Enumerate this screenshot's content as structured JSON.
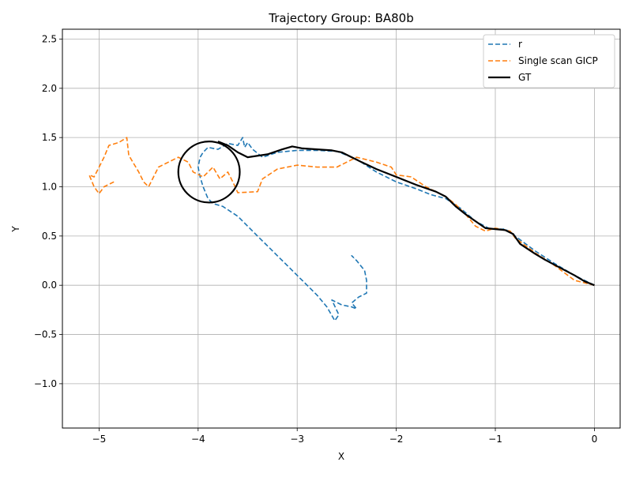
{
  "chart_data": {
    "type": "line",
    "title": "Trajectory Group: BA80b",
    "xlabel": "X",
    "ylabel": "Y",
    "xlim": [
      -5.37,
      0.26
    ],
    "ylim": [
      -1.45,
      2.6
    ],
    "xticks": [
      -5,
      -4,
      -3,
      -2,
      -1,
      0
    ],
    "yticks": [
      -1.0,
      -0.5,
      0.0,
      0.5,
      1.0,
      1.5,
      2.0,
      2.5
    ],
    "xtick_labels": [
      "−5",
      "−4",
      "−3",
      "−2",
      "−1",
      "0"
    ],
    "ytick_labels": [
      "−1.0",
      "−0.5",
      "0.0",
      "0.5",
      "1.0",
      "1.5",
      "2.0",
      "2.5"
    ],
    "grid": true,
    "legend_position": "top-right",
    "series": [
      {
        "name": "r",
        "color": "#1f77b4",
        "style": "dashed",
        "points": [
          [
            0.0,
            0.0
          ],
          [
            -0.2,
            0.1
          ],
          [
            -0.4,
            0.22
          ],
          [
            -0.6,
            0.35
          ],
          [
            -0.8,
            0.5
          ],
          [
            -0.9,
            0.57
          ],
          [
            -1.05,
            0.57
          ],
          [
            -1.2,
            0.65
          ],
          [
            -1.35,
            0.78
          ],
          [
            -1.5,
            0.88
          ],
          [
            -1.65,
            0.92
          ],
          [
            -1.8,
            0.98
          ],
          [
            -2.0,
            1.05
          ],
          [
            -2.2,
            1.15
          ],
          [
            -2.4,
            1.28
          ],
          [
            -2.6,
            1.36
          ],
          [
            -2.8,
            1.37
          ],
          [
            -3.0,
            1.37
          ],
          [
            -3.2,
            1.35
          ],
          [
            -3.35,
            1.3
          ],
          [
            -3.45,
            1.38
          ],
          [
            -3.5,
            1.45
          ],
          [
            -3.53,
            1.4
          ],
          [
            -3.55,
            1.5
          ],
          [
            -3.6,
            1.42
          ],
          [
            -3.7,
            1.44
          ],
          [
            -3.8,
            1.38
          ],
          [
            -3.9,
            1.4
          ],
          [
            -3.95,
            1.35
          ],
          [
            -3.98,
            1.3
          ],
          [
            -4.0,
            1.2
          ],
          [
            -3.98,
            1.1
          ],
          [
            -3.95,
            1.0
          ],
          [
            -3.9,
            0.88
          ],
          [
            -3.85,
            0.83
          ],
          [
            -3.75,
            0.8
          ],
          [
            -3.6,
            0.7
          ],
          [
            -3.4,
            0.5
          ],
          [
            -3.2,
            0.3
          ],
          [
            -3.0,
            0.1
          ],
          [
            -2.8,
            -0.1
          ],
          [
            -2.7,
            -0.22
          ],
          [
            -2.62,
            -0.36
          ],
          [
            -2.58,
            -0.3
          ],
          [
            -2.65,
            -0.15
          ],
          [
            -2.55,
            -0.2
          ],
          [
            -2.45,
            -0.22
          ],
          [
            -2.4,
            -0.24
          ],
          [
            -2.45,
            -0.18
          ],
          [
            -2.38,
            -0.12
          ],
          [
            -2.3,
            -0.08
          ],
          [
            -2.3,
            0.05
          ],
          [
            -2.32,
            0.15
          ],
          [
            -2.4,
            0.25
          ],
          [
            -2.45,
            0.3
          ],
          [
            -2.42,
            0.27
          ]
        ]
      },
      {
        "name": "Single scan GICP",
        "color": "#ff7f0e",
        "style": "dashed",
        "points": [
          [
            0.0,
            0.0
          ],
          [
            -0.2,
            0.05
          ],
          [
            -0.4,
            0.2
          ],
          [
            -0.6,
            0.33
          ],
          [
            -0.8,
            0.48
          ],
          [
            -0.85,
            0.55
          ],
          [
            -1.0,
            0.58
          ],
          [
            -1.1,
            0.55
          ],
          [
            -1.2,
            0.6
          ],
          [
            -1.3,
            0.72
          ],
          [
            -1.4,
            0.82
          ],
          [
            -1.5,
            0.9
          ],
          [
            -1.7,
            1.0
          ],
          [
            -1.85,
            1.1
          ],
          [
            -2.0,
            1.12
          ],
          [
            -2.05,
            1.2
          ],
          [
            -2.2,
            1.25
          ],
          [
            -2.4,
            1.3
          ],
          [
            -2.5,
            1.25
          ],
          [
            -2.6,
            1.2
          ],
          [
            -2.8,
            1.2
          ],
          [
            -3.0,
            1.22
          ],
          [
            -3.2,
            1.18
          ],
          [
            -3.35,
            1.08
          ],
          [
            -3.4,
            0.95
          ],
          [
            -3.6,
            0.94
          ],
          [
            -3.65,
            1.05
          ],
          [
            -3.7,
            1.15
          ],
          [
            -3.78,
            1.08
          ],
          [
            -3.85,
            1.2
          ],
          [
            -3.95,
            1.1
          ],
          [
            -4.05,
            1.15
          ],
          [
            -4.1,
            1.25
          ],
          [
            -4.2,
            1.3
          ],
          [
            -4.3,
            1.25
          ],
          [
            -4.4,
            1.2
          ],
          [
            -4.5,
            1.0
          ],
          [
            -4.55,
            1.05
          ],
          [
            -4.6,
            1.15
          ],
          [
            -4.7,
            1.32
          ],
          [
            -4.72,
            1.5
          ],
          [
            -4.8,
            1.45
          ],
          [
            -4.9,
            1.42
          ],
          [
            -4.95,
            1.3
          ],
          [
            -5.0,
            1.2
          ],
          [
            -5.05,
            1.1
          ],
          [
            -5.1,
            1.12
          ],
          [
            -5.05,
            1.0
          ],
          [
            -5.0,
            0.93
          ],
          [
            -4.95,
            1.0
          ],
          [
            -4.85,
            1.05
          ]
        ]
      },
      {
        "name": "GT",
        "color": "#000000",
        "style": "solid",
        "points": [
          [
            0.0,
            0.0
          ],
          [
            -0.1,
            0.04
          ],
          [
            -0.2,
            0.1
          ],
          [
            -0.35,
            0.18
          ],
          [
            -0.5,
            0.26
          ],
          [
            -0.6,
            0.32
          ],
          [
            -0.75,
            0.42
          ],
          [
            -0.82,
            0.52
          ],
          [
            -0.9,
            0.56
          ],
          [
            -1.0,
            0.57
          ],
          [
            -1.1,
            0.58
          ],
          [
            -1.2,
            0.65
          ],
          [
            -1.3,
            0.72
          ],
          [
            -1.4,
            0.8
          ],
          [
            -1.5,
            0.9
          ],
          [
            -1.6,
            0.95
          ],
          [
            -1.8,
            1.02
          ],
          [
            -2.0,
            1.1
          ],
          [
            -2.2,
            1.18
          ],
          [
            -2.35,
            1.25
          ],
          [
            -2.45,
            1.3
          ],
          [
            -2.55,
            1.35
          ],
          [
            -2.65,
            1.37
          ],
          [
            -2.8,
            1.38
          ],
          [
            -2.95,
            1.39
          ],
          [
            -3.05,
            1.41
          ],
          [
            -3.15,
            1.38
          ],
          [
            -3.3,
            1.33
          ],
          [
            -3.5,
            1.3
          ],
          [
            -3.6,
            1.35
          ],
          [
            -3.7,
            1.42
          ],
          [
            -3.8,
            1.46
          ]
        ]
      }
    ],
    "gt_loop": {
      "center": [
        -3.89,
        1.15
      ],
      "radius": 0.31
    }
  }
}
